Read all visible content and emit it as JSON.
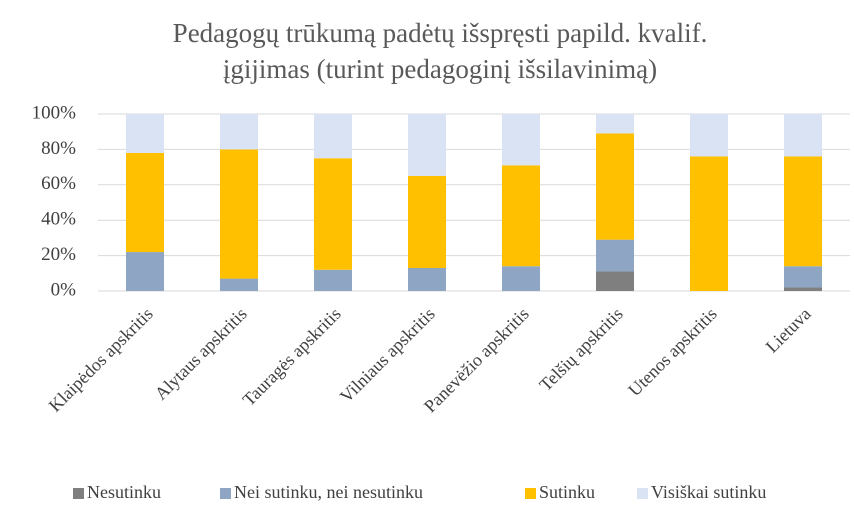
{
  "chart_data": {
    "type": "stacked_bar",
    "title": [
      "Pedagogų trūkumą padėtų išspręsti papild. kvalif.",
      "įgijimas (turint pedagoginį išsilavinimą)"
    ],
    "categories": [
      "Klaipėdos apskritis",
      "Alytaus apskritis",
      "Tauragės apskritis",
      "Vilniaus apskritis",
      "Panevėžio apskritis",
      "Telšių apskritis",
      "Utenos apskritis",
      "Lietuva"
    ],
    "series": [
      {
        "name": "Nesutinku",
        "color": "#7f7f7f",
        "values": [
          0,
          0,
          0,
          0,
          0,
          11,
          0,
          2
        ]
      },
      {
        "name": "Nei sutinku, nei nesutinku",
        "color": "#8ea5c3",
        "values": [
          22,
          7,
          12,
          13,
          14,
          18,
          0,
          12
        ]
      },
      {
        "name": "Sutinku",
        "color": "#ffc000",
        "values": [
          56,
          73,
          63,
          52,
          57,
          60,
          76,
          62
        ]
      },
      {
        "name": "Visiškai sutinku",
        "color": "#dae3f3",
        "values": [
          22,
          20,
          25,
          35,
          29,
          11,
          24,
          24
        ]
      }
    ],
    "ylim": [
      0,
      100
    ],
    "yticks": [
      {
        "value": 0,
        "label": "0%"
      },
      {
        "value": 20,
        "label": "20%"
      },
      {
        "value": 40,
        "label": "40%"
      },
      {
        "value": 60,
        "label": "60%"
      },
      {
        "value": 80,
        "label": "80%"
      },
      {
        "value": 100,
        "label": "100%"
      }
    ],
    "grid": true,
    "legend": "bottom"
  }
}
